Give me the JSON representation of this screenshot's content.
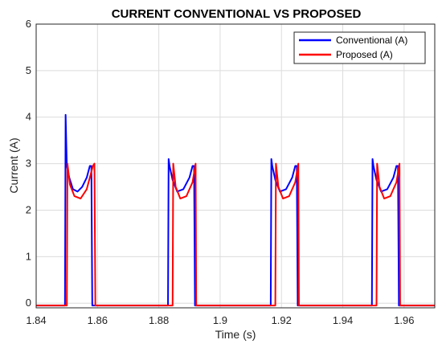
{
  "chart_data": {
    "type": "line",
    "title": "CURRENT CONVENTIONAL VS PROPOSED",
    "xlabel": "Time (s)",
    "ylabel": "Current (A)",
    "xlim": [
      1.84,
      1.97
    ],
    "ylim": [
      -0.1,
      6
    ],
    "xticks": [
      "1.84",
      "1.86",
      "1.88",
      "1.9",
      "1.92",
      "1.94",
      "1.96"
    ],
    "yticks": [
      "0",
      "1",
      "2",
      "3",
      "4",
      "5",
      "6"
    ],
    "grid": true,
    "legend_position": "top-right",
    "series": [
      {
        "name": "Conventional (A)",
        "color": "#0000ff",
        "x": [
          1.84,
          1.8494,
          1.8496,
          1.85,
          1.8508,
          1.852,
          1.8535,
          1.855,
          1.8565,
          1.8575,
          1.858,
          1.8583,
          1.8585,
          1.86,
          1.883,
          1.8832,
          1.8835,
          1.8845,
          1.886,
          1.888,
          1.89,
          1.891,
          1.8915,
          1.8918,
          1.8935,
          1.9165,
          1.9167,
          1.917,
          1.918,
          1.9195,
          1.9215,
          1.9235,
          1.9245,
          1.925,
          1.9253,
          1.927,
          1.9495,
          1.9497,
          1.95,
          1.951,
          1.9525,
          1.9545,
          1.9565,
          1.9575,
          1.958,
          1.9583,
          1.97
        ],
        "y": [
          -0.05,
          -0.05,
          4.05,
          2.95,
          2.7,
          2.45,
          2.4,
          2.5,
          2.7,
          2.95,
          2.95,
          -0.05,
          -0.05,
          -0.05,
          -0.05,
          3.1,
          2.95,
          2.65,
          2.4,
          2.45,
          2.7,
          2.95,
          2.95,
          -0.05,
          -0.05,
          -0.05,
          3.1,
          2.95,
          2.65,
          2.4,
          2.45,
          2.7,
          2.95,
          2.95,
          -0.05,
          -0.05,
          -0.05,
          3.1,
          2.95,
          2.65,
          2.4,
          2.45,
          2.7,
          2.95,
          2.95,
          -0.05,
          -0.05
        ]
      },
      {
        "name": "Proposed (A)",
        "color": "#ff0000",
        "x": [
          1.84,
          1.85,
          1.8502,
          1.851,
          1.8525,
          1.8545,
          1.8565,
          1.8585,
          1.859,
          1.8593,
          1.861,
          1.8845,
          1.8847,
          1.8855,
          1.887,
          1.889,
          1.891,
          1.892,
          1.8922,
          1.894,
          1.918,
          1.9182,
          1.919,
          1.9205,
          1.9225,
          1.9245,
          1.9255,
          1.9257,
          1.9275,
          1.951,
          1.9512,
          1.952,
          1.9535,
          1.9555,
          1.9575,
          1.9585,
          1.9587,
          1.97
        ],
        "y": [
          -0.05,
          -0.05,
          3.0,
          2.55,
          2.3,
          2.25,
          2.45,
          2.95,
          3.0,
          -0.05,
          -0.05,
          -0.05,
          3.0,
          2.5,
          2.25,
          2.3,
          2.6,
          3.0,
          -0.05,
          -0.05,
          -0.05,
          3.0,
          2.5,
          2.25,
          2.3,
          2.6,
          3.0,
          -0.05,
          -0.05,
          -0.05,
          3.0,
          2.5,
          2.25,
          2.3,
          2.6,
          3.0,
          -0.05,
          -0.05
        ]
      }
    ]
  }
}
